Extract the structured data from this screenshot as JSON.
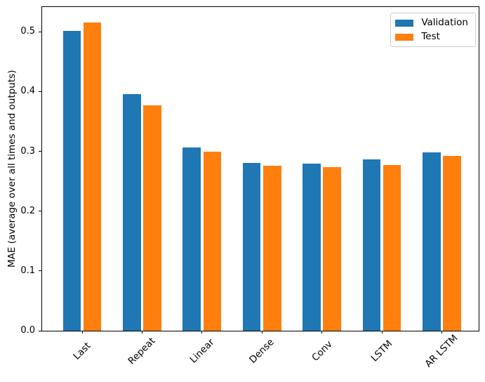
{
  "chart_data": {
    "type": "bar",
    "title": "",
    "xlabel": "",
    "ylabel": "MAE (average over all times and outputs)",
    "categories": [
      "Last",
      "Repeat",
      "Linear",
      "Dense",
      "Conv",
      "LSTM",
      "AR LSTM"
    ],
    "series": [
      {
        "name": "Validation",
        "color": "#1f77b4",
        "values": [
          0.501,
          0.396,
          0.306,
          0.281,
          0.28,
          0.286,
          0.298
        ]
      },
      {
        "name": "Test",
        "color": "#ff7f0e",
        "values": [
          0.516,
          0.377,
          0.299,
          0.276,
          0.274,
          0.277,
          0.292
        ]
      }
    ],
    "ylim": [
      0,
      0.5413
    ],
    "yticks": [
      0.0,
      0.1,
      0.2,
      0.3,
      0.4,
      0.5
    ],
    "ytick_labels": [
      "0.0",
      "0.1",
      "0.2",
      "0.3",
      "0.4",
      "0.5"
    ],
    "xtick_rotation_deg": 45,
    "grid": false,
    "legend_position": "upper right",
    "bar_width_units": 0.3,
    "background_color": "#ffffff",
    "spine_color": "#000000"
  }
}
